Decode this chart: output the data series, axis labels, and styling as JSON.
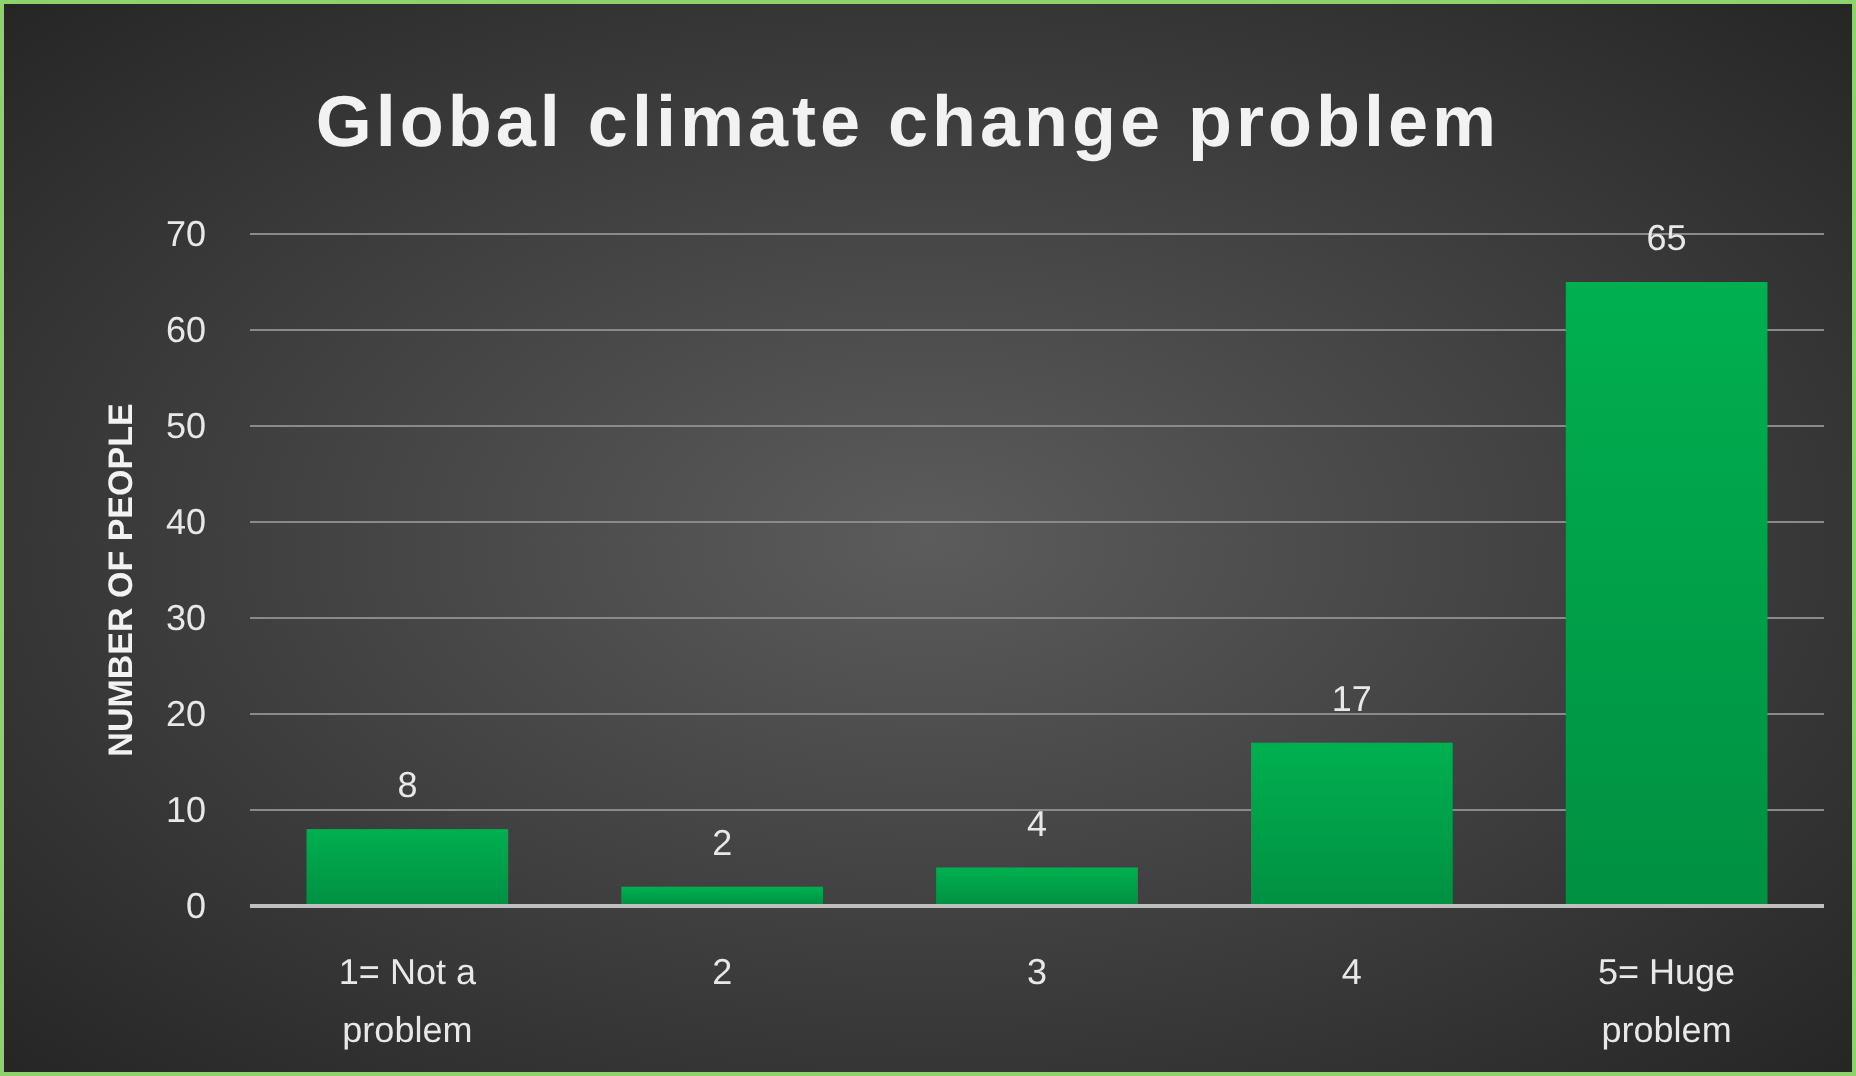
{
  "chart_data": {
    "type": "bar",
    "title": "Global climate change problem",
    "ylabel": "NUMBER OF PEOPLE",
    "categories": [
      "1= Not a problem",
      "2",
      "3",
      "4",
      "5= Huge problem"
    ],
    "values": [
      8,
      2,
      4,
      17,
      65
    ],
    "color": "#00b050",
    "ylim": [
      0,
      70
    ],
    "yticks": [
      0,
      10,
      20,
      30,
      40,
      50,
      60,
      70
    ],
    "grid": "y",
    "data_labels": true
  }
}
